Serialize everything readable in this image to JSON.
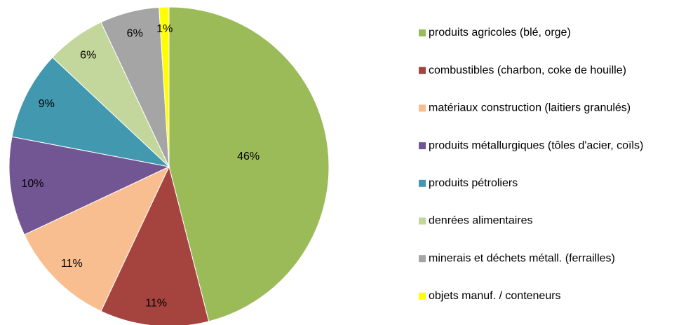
{
  "chart_data": {
    "type": "pie",
    "categories": [
      "produits agricoles (blé, orge)",
      "combustibles (charbon, coke de houille)",
      "matériaux construction (laitiers granulés)",
      "produits métallurgiques (tôles d'acier, coïls)",
      "produits pétroliers",
      "denrées alimentaires",
      "minerais et déchets métall. (ferrailles)",
      "objets manuf. / conteneurs"
    ],
    "values": [
      46,
      11,
      11,
      10,
      9,
      6,
      6,
      1
    ],
    "value_labels": [
      "46%",
      "11%",
      "11%",
      "10%",
      "9%",
      "6%",
      "6%",
      "1%"
    ],
    "colors": [
      "#9bbb59",
      "#a5443f",
      "#f9be8f",
      "#725593",
      "#4198af",
      "#c3d69b",
      "#a5a5a5",
      "#ffff00"
    ],
    "legend": "right"
  }
}
